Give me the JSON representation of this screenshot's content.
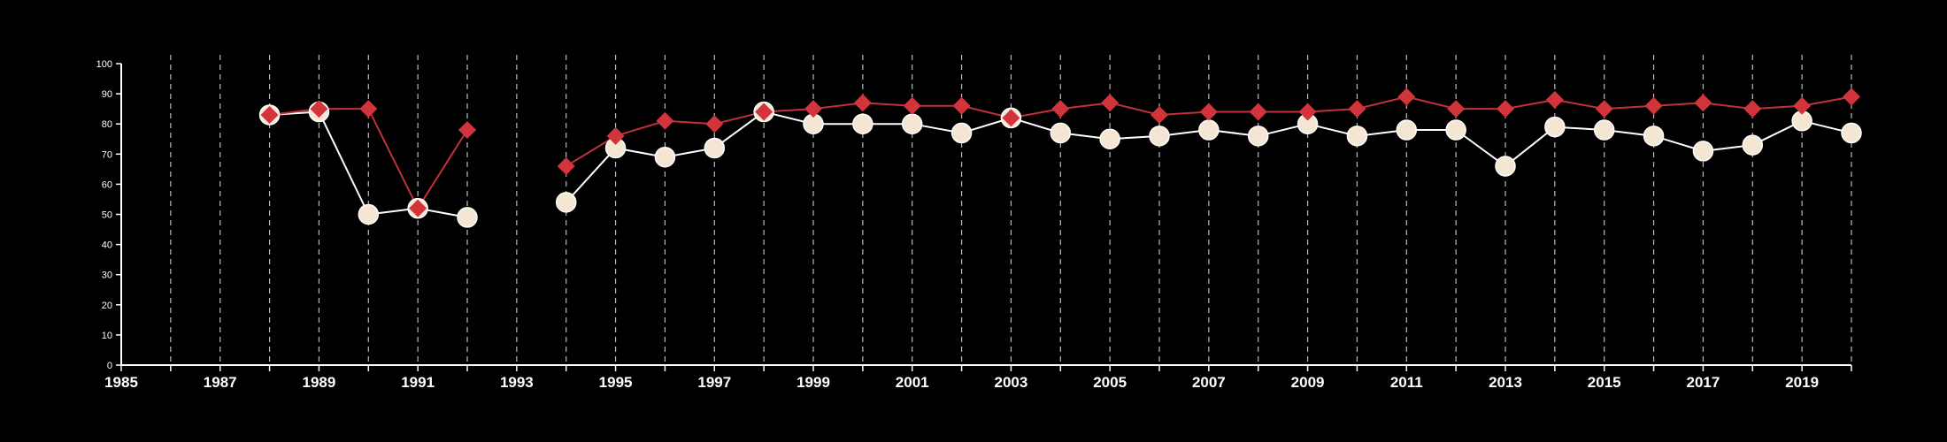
{
  "chart_data": {
    "type": "line",
    "title": "",
    "xlabel": "",
    "ylabel": "",
    "xlim": [
      1985,
      2020
    ],
    "ylim": [
      0,
      100
    ],
    "x_ticks": [
      1985,
      1987,
      1989,
      1991,
      1993,
      1995,
      1997,
      1999,
      2001,
      2003,
      2005,
      2007,
      2009,
      2011,
      2013,
      2015,
      2017,
      2019
    ],
    "y_ticks": [
      0,
      10,
      20,
      30,
      40,
      50,
      60,
      70,
      80,
      90,
      100
    ],
    "grid": {
      "vertical_dashed": true,
      "every_year": true
    },
    "legend": "none",
    "background_color": "#000000",
    "axis_color": "#ffffff",
    "grid_color": "#bbbbbb",
    "series": [
      {
        "marker": "circle",
        "line_color": "#ffffff",
        "marker_color": "#f5e6d3",
        "points": [
          [
            1988,
            83
          ],
          [
            1989,
            84
          ],
          [
            1990,
            50
          ],
          [
            1991,
            52
          ],
          [
            1992,
            49
          ],
          [
            1994,
            54
          ],
          [
            1995,
            72
          ],
          [
            1996,
            69
          ],
          [
            1997,
            72
          ],
          [
            1998,
            84
          ],
          [
            1999,
            80
          ],
          [
            2000,
            80
          ],
          [
            2001,
            80
          ],
          [
            2002,
            77
          ],
          [
            2003,
            82
          ],
          [
            2004,
            77
          ],
          [
            2005,
            75
          ],
          [
            2006,
            76
          ],
          [
            2007,
            78
          ],
          [
            2008,
            76
          ],
          [
            2009,
            80
          ],
          [
            2010,
            76
          ],
          [
            2011,
            78
          ],
          [
            2012,
            78
          ],
          [
            2013,
            66
          ],
          [
            2014,
            79
          ],
          [
            2015,
            78
          ],
          [
            2016,
            76
          ],
          [
            2017,
            71
          ],
          [
            2018,
            73
          ],
          [
            2019,
            81
          ],
          [
            2020,
            77
          ]
        ]
      },
      {
        "marker": "diamond",
        "line_color": "#c0313a",
        "marker_color": "#d1343b",
        "points": [
          [
            1988,
            83
          ],
          [
            1989,
            85
          ],
          [
            1990,
            85
          ],
          [
            1991,
            52
          ],
          [
            1992,
            78
          ],
          [
            1994,
            66
          ],
          [
            1995,
            76
          ],
          [
            1996,
            81
          ],
          [
            1997,
            80
          ],
          [
            1998,
            84
          ],
          [
            1999,
            85
          ],
          [
            2000,
            87
          ],
          [
            2001,
            86
          ],
          [
            2002,
            86
          ],
          [
            2003,
            82
          ],
          [
            2004,
            85
          ],
          [
            2005,
            87
          ],
          [
            2006,
            83
          ],
          [
            2007,
            84
          ],
          [
            2008,
            84
          ],
          [
            2009,
            84
          ],
          [
            2010,
            85
          ],
          [
            2011,
            89
          ],
          [
            2012,
            85
          ],
          [
            2013,
            85
          ],
          [
            2014,
            88
          ],
          [
            2015,
            85
          ],
          [
            2016,
            86
          ],
          [
            2017,
            87
          ],
          [
            2018,
            85
          ],
          [
            2019,
            86
          ],
          [
            2020,
            89
          ]
        ]
      }
    ]
  }
}
